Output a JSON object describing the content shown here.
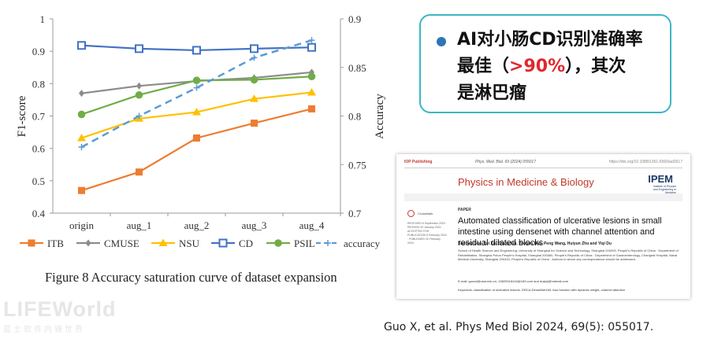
{
  "chart_data": {
    "type": "line",
    "categories": [
      "origin",
      "aug_1",
      "aug_2",
      "aug_3",
      "aug_4"
    ],
    "ylabel": "F1-score",
    "y2label": "Accuracy",
    "ylim": [
      0.4,
      1.0
    ],
    "y2lim": [
      0.7,
      0.9
    ],
    "yticks": [
      "0.4",
      "0.5",
      "0.6",
      "0.7",
      "0.8",
      "0.9",
      "1"
    ],
    "y2ticks": [
      "0.7",
      "0.75",
      "0.8",
      "0.85",
      "0.9"
    ],
    "legend_position": "bottom",
    "series": [
      {
        "name": "ITB",
        "color": "#ed7d31",
        "marker": "square-filled",
        "axis": "left",
        "values": [
          0.47,
          0.527,
          0.632,
          0.678,
          0.722
        ]
      },
      {
        "name": "CMUSE",
        "color": "#8c8c8c",
        "marker": "diamond",
        "axis": "left",
        "values": [
          0.77,
          0.793,
          0.808,
          0.818,
          0.835
        ]
      },
      {
        "name": "NSU",
        "color": "#ffc000",
        "marker": "triangle",
        "axis": "left",
        "values": [
          0.632,
          0.692,
          0.712,
          0.753,
          0.773
        ]
      },
      {
        "name": "CD",
        "color": "#4472c4",
        "marker": "square-open",
        "axis": "left",
        "values": [
          0.918,
          0.908,
          0.903,
          0.908,
          0.912
        ]
      },
      {
        "name": "PSIL",
        "color": "#70ad47",
        "marker": "circle",
        "axis": "left",
        "values": [
          0.705,
          0.765,
          0.81,
          0.812,
          0.822
        ]
      },
      {
        "name": "accuracy",
        "color": "#5b9bd5",
        "marker": "plus",
        "dashed": true,
        "axis": "right",
        "values": [
          0.768,
          0.8,
          0.829,
          0.86,
          0.878
        ]
      }
    ]
  },
  "caption": "Figure 8 Accuracy saturation curve of dataset expansion",
  "callout": {
    "line1": "AI对小肠CD识别准确率",
    "line2_pre": "最佳（",
    "line2_highlight": ">90%",
    "line2_post": "），其次",
    "line3": "是淋巴瘤"
  },
  "watermark": {
    "logo": "LIFEWorld",
    "subtitle": "蓝士软件内镜世界"
  },
  "paper": {
    "publisher": "IOP Publishing",
    "journal_ref": "Phys. Med. Biol. 69 (2024) 055017",
    "doi": "https://doi.org/10.1088/1361-6560/ad2617",
    "journal": "Physics in Medicine & Biology",
    "ipem": "IPEM",
    "ipem_sub": "Institute of Physics and Engineering in Medicine",
    "crossmark": "CrossMark",
    "side_info": "RECEIVED 6 September 2023 · REVISED 29 January 2024 · ACCEPTED FOR PUBLICATION 5 February 2024 · PUBLISHED 20 February 2024",
    "section": "PAPER",
    "title": "Automated classification of ulcerative lesions in small intestine using densenet with channel attention and residual dilated blocks",
    "authors": "Xudong Guo, Lei Xu, Zhang Liu, Youguo Hao, Peng Wang, Huiyun Zhu and Yiqi Du",
    "affiliations": "School of Health Science and Engineering, University of Shanghai for Science and Technology, Shanghai 200093, People's Republic of China · Department of Rehabilitation, Shanghai Putuo People's Hospital, Shanghai 200060, People's Republic of China · Department of Gastroenterology, Changhai Hospital, Naval Medical University, Shanghai 200433, People's Republic of China · Authors to whom any correspondence should be addressed.",
    "email": "E-mail: guoxd@usst.edu.cn, 13820016416@163.com and duyiqi@hotmail.com",
    "keywords": "Keywords: classification of ulcerative lesions, DRCA-DenseNet169, loss function with dynamic weight, channel attention"
  },
  "citation": "Guo X, et al. Phys Med Biol 2024, 69(5): 055017."
}
